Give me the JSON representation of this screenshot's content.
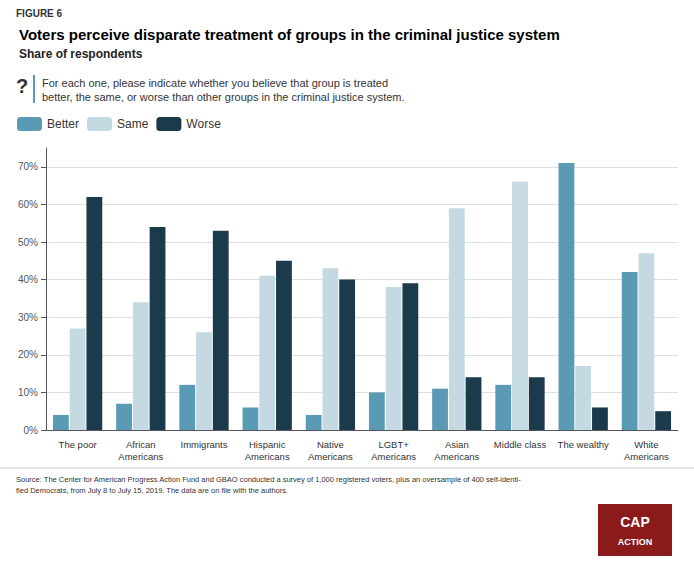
{
  "chart_data": {
    "type": "bar",
    "figure_label": "FIGURE 6",
    "title": "Voters perceive disparate treatment of groups in the criminal justice system",
    "subtitle": "Share of respondents",
    "question_icon": "?",
    "question": "For each one, please indicate whether you believe that group is treated\nbetter, the same, or worse than other groups in the criminal justice system.",
    "categories": [
      "The poor",
      "African\nAmericans",
      "Immigrants",
      "Hispanic\nAmericans",
      "Native\nAmericans",
      "LGBT+\nAmericans",
      "Asian\nAmericans",
      "Middle class",
      "The wealthy",
      "White\nAmericans"
    ],
    "series": [
      {
        "name": "Better",
        "color": "#5b9ab5",
        "values": [
          4,
          7,
          12,
          6,
          4,
          10,
          11,
          12,
          71,
          42
        ]
      },
      {
        "name": "Same",
        "color": "#c5d9e3",
        "values": [
          27,
          34,
          26,
          41,
          43,
          38,
          59,
          66,
          17,
          47
        ]
      },
      {
        "name": "Worse",
        "color": "#1b3a4b",
        "values": [
          62,
          54,
          53,
          45,
          40,
          39,
          14,
          14,
          6,
          5
        ]
      }
    ],
    "ylim": [
      0,
      75
    ],
    "yticks": [
      {
        "value": 0,
        "label": "0%"
      },
      {
        "value": 10,
        "label": "10%"
      },
      {
        "value": 20,
        "label": "20%"
      },
      {
        "value": 30,
        "label": "30%"
      },
      {
        "value": 40,
        "label": "40%"
      },
      {
        "value": 50,
        "label": "50%"
      },
      {
        "value": 60,
        "label": "60%"
      },
      {
        "value": 70,
        "label": "70%"
      }
    ],
    "grid": true,
    "legend": "upper left",
    "source": "Source: The Center for American Progress Action Fund and GBAO conducted a survey of 1,000 registered voters, plus an oversample of 400 self-identi-\nfied Democrats, from July 8 to July 15, 2019. The data are on file with the authors.",
    "logo": {
      "texts": [
        "CAP",
        "ACTION"
      ],
      "color": "#8b1a1a"
    }
  }
}
